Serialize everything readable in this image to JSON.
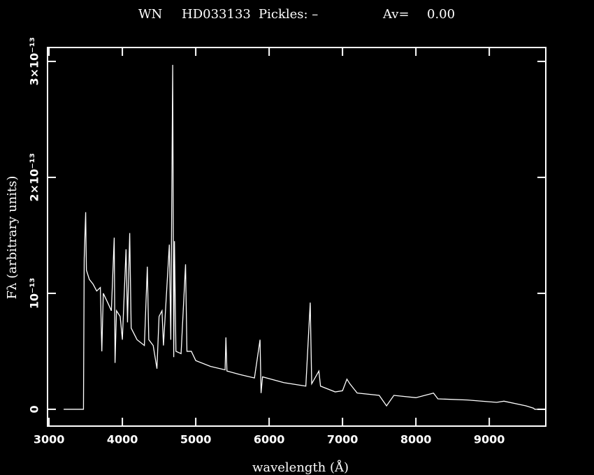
{
  "chart_data": {
    "type": "line",
    "title": "WN",
    "object": "HD033133",
    "pickles": "Pickles: –",
    "av_label": "Av=",
    "av": "0.00",
    "xlabel": "wavelength (Å)",
    "ylabel": "Fλ (arbitrary units)",
    "xlim": [
      2980,
      9770
    ],
    "ylim": [
      -1.45e-14,
      3.12e-13
    ],
    "xticks": [
      3000,
      4000,
      5000,
      6000,
      7000,
      8000,
      9000
    ],
    "yticks": [
      0,
      {
        "value": 1e-13,
        "label": "10⁻¹³"
      },
      {
        "value": 2e-13,
        "label": "2×10⁻¹³"
      },
      {
        "value": 3e-13,
        "label": "3×10⁻¹³"
      }
    ],
    "series": [
      {
        "color": "#ffffff",
        "x": [
          3200,
          3470,
          3480,
          3500,
          3510,
          3550,
          3600,
          3650,
          3700,
          3720,
          3740,
          3800,
          3850,
          3889,
          3900,
          3920,
          3970,
          4000,
          4050,
          4070,
          4100,
          4120,
          4200,
          4300,
          4340,
          4360,
          4420,
          4471,
          4500,
          4540,
          4560,
          4640,
          4660,
          4686,
          4700,
          4710,
          4730,
          4800,
          4861,
          4880,
          4940,
          5000,
          5200,
          5400,
          5411,
          5425,
          5600,
          5800,
          5876,
          5890,
          5910,
          6200,
          6500,
          6560,
          6580,
          6678,
          6700,
          6900,
          7000,
          7060,
          7100,
          7200,
          7500,
          7600,
          7700,
          8000,
          8240,
          8300,
          8700,
          9100,
          9200,
          9500,
          9600,
          9620,
          9770
        ],
        "values": [
          0,
          0,
          1.3e-13,
          1.7e-13,
          1.2e-13,
          1.12e-13,
          1.08e-13,
          1.02e-13,
          1.05e-13,
          5e-14,
          1e-13,
          9.2e-14,
          8.5e-14,
          1.48e-13,
          4e-14,
          8.5e-14,
          8e-14,
          6e-14,
          1.38e-13,
          7.5e-14,
          1.52e-13,
          7e-14,
          6e-14,
          5.5e-14,
          1.23e-13,
          6e-14,
          5.5e-14,
          3.5e-14,
          8e-14,
          8.5e-14,
          5.5e-14,
          1.42e-13,
          6e-14,
          2.97e-13,
          4.5e-14,
          1.45e-13,
          5e-14,
          4.8e-14,
          1.25e-13,
          5e-14,
          5e-14,
          4.2e-14,
          3.7e-14,
          3.4e-14,
          6.2e-14,
          3.3e-14,
          3e-14,
          2.7e-14,
          6e-14,
          1.4e-14,
          2.8e-14,
          2.3e-14,
          2e-14,
          9.2e-14,
          2.2e-14,
          3.3e-14,
          2e-14,
          1.5e-14,
          1.6e-14,
          2.6e-14,
          2.2e-14,
          1.4e-14,
          1.2e-14,
          3e-15,
          1.2e-14,
          1e-14,
          1.4e-14,
          9e-15,
          8e-15,
          6e-15,
          7e-15,
          3e-15,
          1e-15,
          0,
          0
        ]
      }
    ]
  }
}
